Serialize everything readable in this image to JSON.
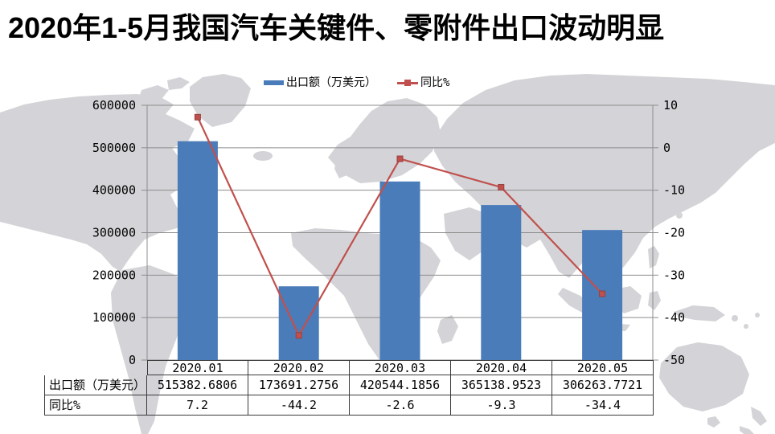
{
  "title": "2020年1-5月我国汽车关键件、零附件出口波动明显",
  "colors": {
    "bar": "#4a7cba",
    "line": "#c0504d",
    "marker_edge": "#97403c",
    "map": "#d4d4d8",
    "grid": "#8c8c8c",
    "axis_text": "#000000",
    "table_border": "#3a3a3a"
  },
  "legend": {
    "bar_label": "出口额（万美元）",
    "line_label": "同比%"
  },
  "table": {
    "row_headers": [
      "出口额（万美元）",
      "同比%"
    ]
  },
  "chart_data": {
    "type": "bar+line combo",
    "title": "2020年1-5月我国汽车关键件、零附件出口波动明显",
    "categories": [
      "2020.01",
      "2020.02",
      "2020.03",
      "2020.04",
      "2020.05"
    ],
    "series": [
      {
        "name": "出口额（万美元）",
        "type": "bar",
        "axis": "left",
        "color": "#4a7cba",
        "values": [
          515382.6806,
          173691.2756,
          420544.1856,
          365138.9523,
          306263.7721
        ]
      },
      {
        "name": "同比%",
        "type": "line",
        "axis": "right",
        "color": "#c0504d",
        "marker": "square",
        "values": [
          7.2,
          -44.2,
          -2.6,
          -9.3,
          -34.4
        ]
      }
    ],
    "left_axis": {
      "min": 0,
      "max": 600000,
      "step": 100000
    },
    "right_axis": {
      "min": -50,
      "max": 10,
      "step": 10
    },
    "grid": true,
    "legend_position": "top",
    "background": "world map, light gray on white"
  }
}
